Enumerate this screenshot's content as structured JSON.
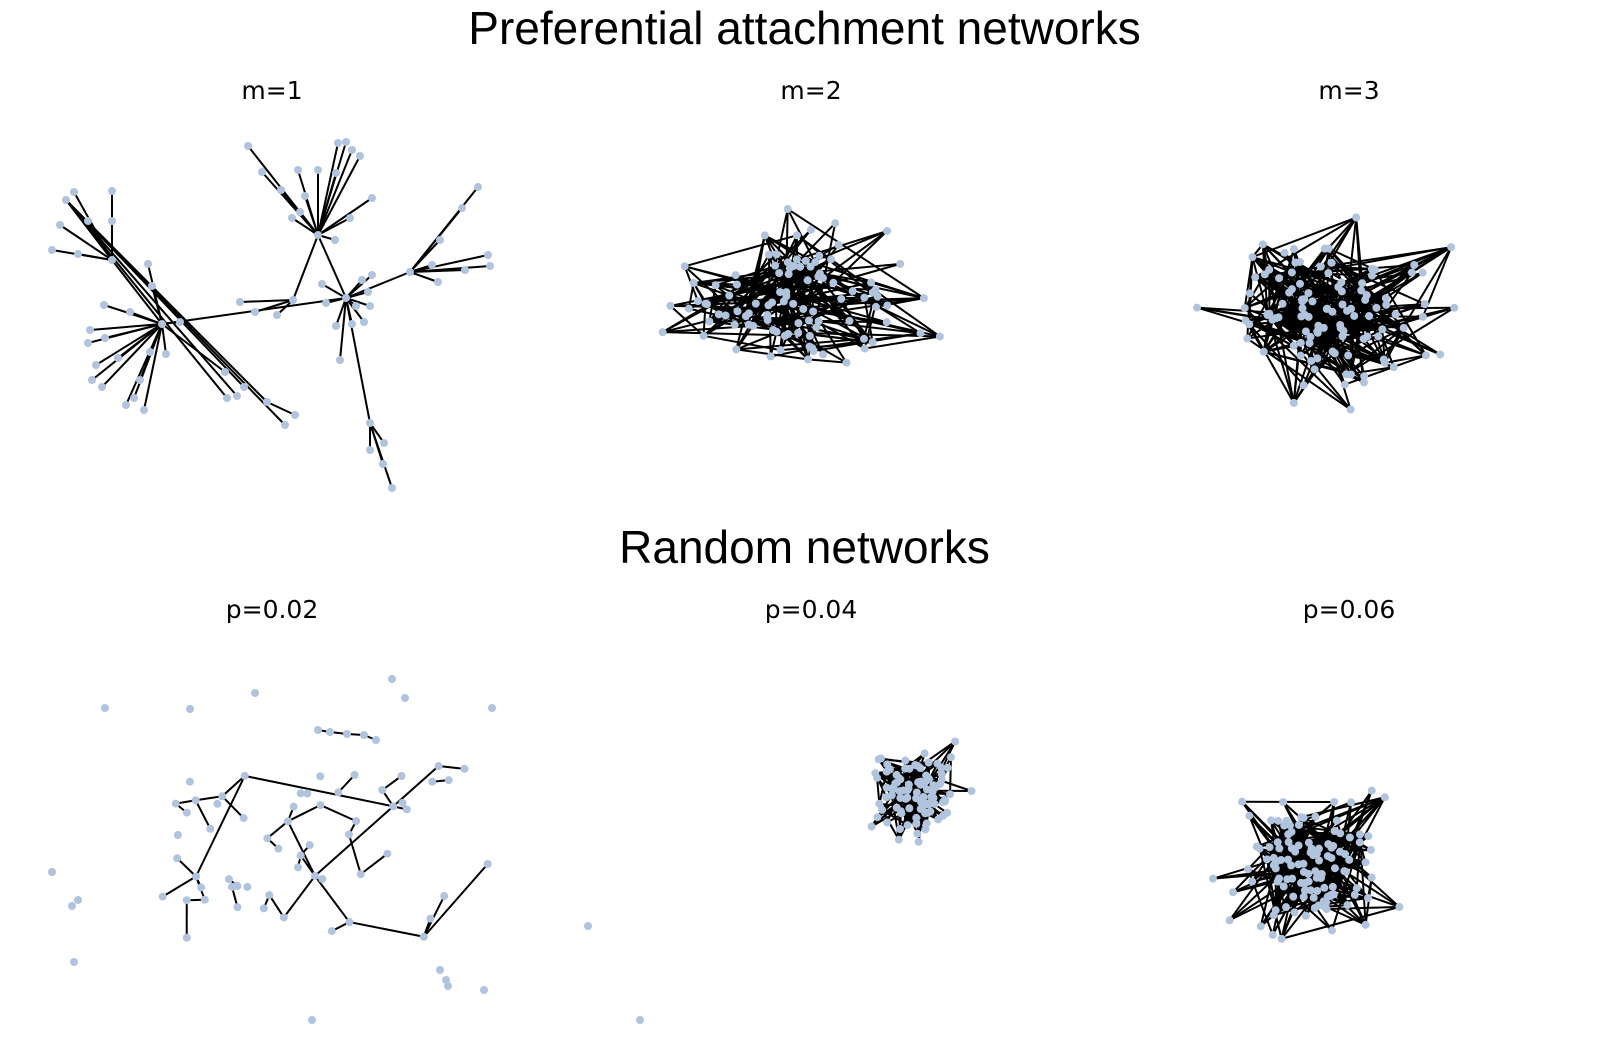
{
  "titles": {
    "preferential": "Preferential attachment networks",
    "random": "Random networks"
  },
  "panels": [
    {
      "label": "m=1",
      "model": "preferential",
      "parameter": "m",
      "value": 1
    },
    {
      "label": "m=2",
      "model": "preferential",
      "parameter": "m",
      "value": 2
    },
    {
      "label": "m=3",
      "model": "preferential",
      "parameter": "m",
      "value": 3
    },
    {
      "label": "p=0.02",
      "model": "random",
      "parameter": "p",
      "value": 0.02
    },
    {
      "label": "p=0.04",
      "model": "random",
      "parameter": "p",
      "value": 0.04
    },
    {
      "label": "p=0.06",
      "model": "random",
      "parameter": "p",
      "value": 0.06
    }
  ],
  "colors": {
    "node": "#b0c4de",
    "edge": "#000000",
    "background": "#ffffff"
  }
}
